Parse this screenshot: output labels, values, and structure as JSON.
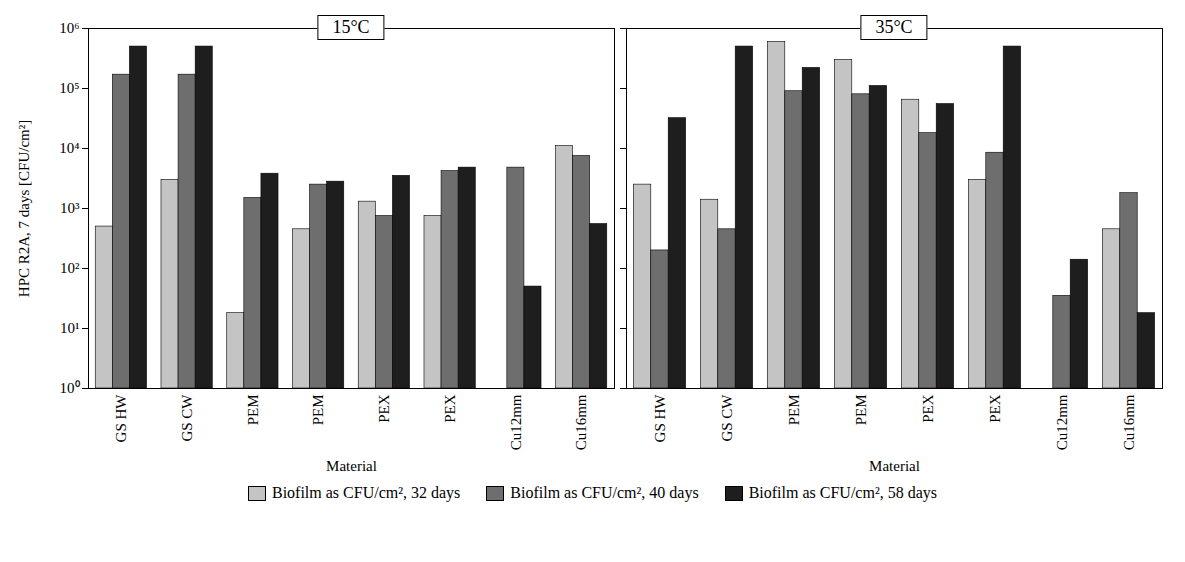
{
  "chart_data": [
    {
      "type": "bar",
      "title": "15°C",
      "y_label": "HPC R2A, 7 days [CFU/cm²]",
      "x_label": "Material",
      "categories": [
        "GS HW",
        "GS CW",
        "PEM",
        "PEM",
        "PEX",
        "PEX",
        "Cu12mm",
        "Cu16mm"
      ],
      "series": [
        {
          "name": "Biofilm as CFU/cm², 32 days",
          "color": "#c4c4c4",
          "values": [
            500,
            3000,
            18,
            450,
            1300,
            750,
            null,
            11000
          ]
        },
        {
          "name": "Biofilm as CFU/cm², 40 days",
          "color": "#6e6e6e",
          "values": [
            170000,
            170000,
            1500,
            2500,
            750,
            4200,
            4800,
            7500
          ]
        },
        {
          "name": "Biofilm as CFU/cm², 58 days",
          "color": "#1e1e1e",
          "values": [
            500000,
            500000,
            3800,
            2800,
            3500,
            4800,
            50,
            550
          ]
        }
      ],
      "log": "y",
      "ylim": [
        1,
        1000000
      ],
      "yticks": [
        {
          "value": 1,
          "label": "10⁰"
        },
        {
          "value": 10,
          "label": "10¹"
        },
        {
          "value": 100,
          "label": "10²"
        },
        {
          "value": 1000,
          "label": "10³"
        },
        {
          "value": 10000,
          "label": "10⁴"
        },
        {
          "value": 100000,
          "label": "10⁵"
        },
        {
          "value": 1000000,
          "label": "10⁶"
        }
      ],
      "grid": false,
      "legend": "bottom"
    },
    {
      "type": "bar",
      "title": "35°C",
      "x_label": "Material",
      "categories": [
        "GS HW",
        "GS CW",
        "PEM",
        "PEM",
        "PEX",
        "PEX",
        "Cu12mm",
        "Cu16mm"
      ],
      "series": [
        {
          "name": "Biofilm as CFU/cm², 32 days",
          "color": "#c4c4c4",
          "values": [
            2500,
            1400,
            600000,
            300000,
            65000,
            3000,
            null,
            450
          ]
        },
        {
          "name": "Biofilm as CFU/cm², 40 days",
          "color": "#6e6e6e",
          "values": [
            200,
            450,
            90000,
            80000,
            18000,
            8500,
            35,
            1800
          ]
        },
        {
          "name": "Biofilm as CFU/cm², 58 days",
          "color": "#1e1e1e",
          "values": [
            32000,
            500000,
            220000,
            110000,
            55000,
            500000,
            140,
            18
          ]
        }
      ],
      "log": "y",
      "ylim": [
        1,
        1000000
      ],
      "yticks": [
        {
          "value": 1,
          "label": "10⁰"
        },
        {
          "value": 10,
          "label": "10¹"
        },
        {
          "value": 100,
          "label": "10²"
        },
        {
          "value": 1000,
          "label": "10³"
        },
        {
          "value": 10000,
          "label": "10⁴"
        },
        {
          "value": 100000,
          "label": "10⁵"
        },
        {
          "value": 1000000,
          "label": "10⁶"
        }
      ],
      "tick_labels": "x",
      "grid": false,
      "legend": "bottom"
    }
  ]
}
